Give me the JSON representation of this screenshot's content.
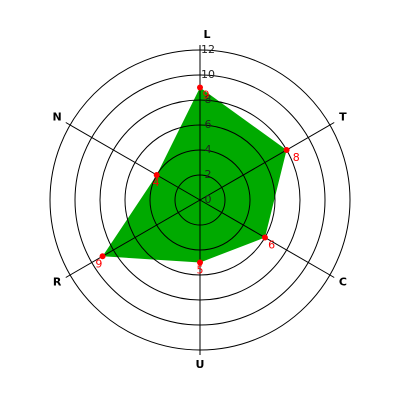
{
  "chart_data": {
    "type": "radar",
    "categories": [
      "L",
      "T",
      "C",
      "U",
      "R",
      "N"
    ],
    "values": [
      9,
      8,
      6,
      5,
      9,
      4
    ],
    "color": "#00aa00",
    "point_color": "#ff0000",
    "label_color": "#ff0000",
    "ylim": [
      0,
      12
    ],
    "yticks": [
      0,
      2,
      4,
      6,
      8,
      10,
      12
    ],
    "grid": true
  }
}
